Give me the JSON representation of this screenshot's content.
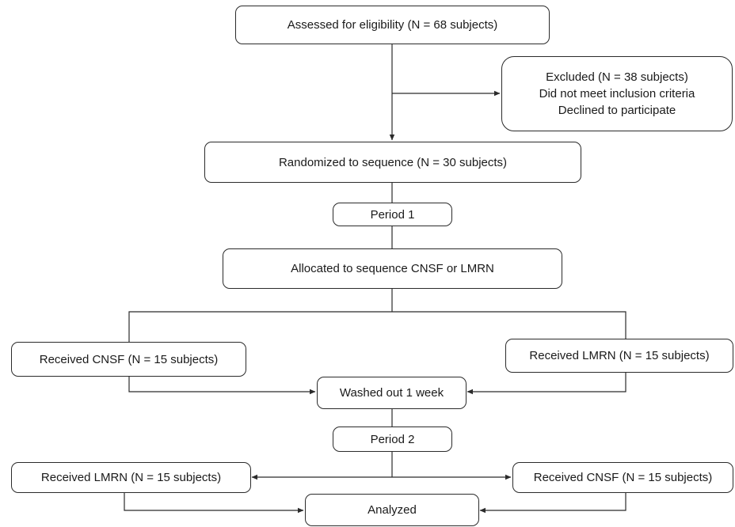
{
  "nodes": {
    "assessed": "Assessed for eligibility (N = 68 subjects)",
    "excluded": {
      "title": "Excluded (N = 38 subjects)",
      "reasons": [
        "Did not meet inclusion criteria",
        "Declined to participate"
      ]
    },
    "randomized": "Randomized to sequence (N = 30 subjects)",
    "period1": "Period 1",
    "allocated": "Allocated to sequence CNSF or LMRN",
    "received_cnsf_p1": "Received CNSF (N = 15 subjects)",
    "received_lmrn_p1": "Received LMRN (N = 15 subjects)",
    "washout": "Washed out 1 week",
    "period2": "Period 2",
    "received_lmrn_p2": "Received LMRN (N = 15 subjects)",
    "received_cnsf_p2": "Received CNSF (N = 15 subjects)",
    "analyzed": "Analyzed"
  },
  "colors": {
    "stroke": "#2b2b2b",
    "text": "#1a1a1a",
    "background": "#ffffff"
  }
}
